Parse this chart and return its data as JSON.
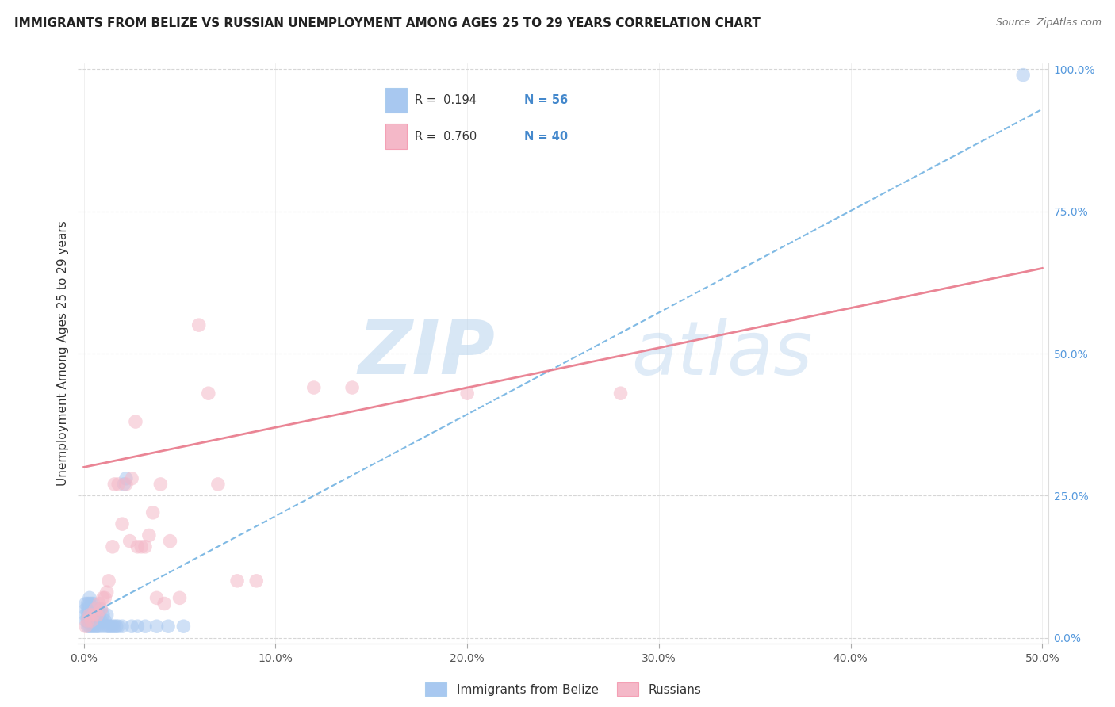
{
  "title": "IMMIGRANTS FROM BELIZE VS RUSSIAN UNEMPLOYMENT AMONG AGES 25 TO 29 YEARS CORRELATION CHART",
  "source": "Source: ZipAtlas.com",
  "ylabel": "Unemployment Among Ages 25 to 29 years",
  "xlim": [
    -0.003,
    0.503
  ],
  "ylim": [
    -0.01,
    1.01
  ],
  "xtick_vals": [
    0.0,
    0.1,
    0.2,
    0.3,
    0.4,
    0.5
  ],
  "xtick_labels": [
    "0.0%",
    "10.0%",
    "20.0%",
    "30.0%",
    "40.0%",
    "50.0%"
  ],
  "ytick_vals": [
    0.0,
    0.25,
    0.5,
    0.75,
    1.0
  ],
  "ytick_labels": [
    "0.0%",
    "25.0%",
    "50.0%",
    "75.0%",
    "100.0%"
  ],
  "legend_r1": "R =  0.194",
  "legend_n1": "N = 56",
  "legend_r2": "R =  0.760",
  "legend_n2": "N = 40",
  "blue_scatter_color": "#A8C8F0",
  "pink_scatter_color": "#F4B8C8",
  "blue_line_color": "#6AAEE0",
  "pink_line_color": "#E8788A",
  "watermark_zip": "ZIP",
  "watermark_atlas": "atlas",
  "blue_line_x0": 0.0,
  "blue_line_y0": 0.035,
  "blue_line_x1": 0.5,
  "blue_line_y1": 0.93,
  "pink_line_x0": 0.0,
  "pink_line_y0": 0.3,
  "pink_line_x1": 0.5,
  "pink_line_y1": 0.65,
  "blue_x": [
    0.001,
    0.001,
    0.001,
    0.001,
    0.002,
    0.002,
    0.002,
    0.002,
    0.002,
    0.003,
    0.003,
    0.003,
    0.003,
    0.003,
    0.003,
    0.004,
    0.004,
    0.004,
    0.004,
    0.004,
    0.005,
    0.005,
    0.005,
    0.005,
    0.005,
    0.006,
    0.006,
    0.006,
    0.007,
    0.007,
    0.007,
    0.008,
    0.008,
    0.009,
    0.009,
    0.01,
    0.01,
    0.011,
    0.012,
    0.012,
    0.013,
    0.014,
    0.015,
    0.016,
    0.017,
    0.018,
    0.02,
    0.021,
    0.022,
    0.025,
    0.028,
    0.032,
    0.038,
    0.044,
    0.052,
    0.49
  ],
  "blue_y": [
    0.03,
    0.04,
    0.05,
    0.06,
    0.02,
    0.03,
    0.04,
    0.05,
    0.06,
    0.02,
    0.03,
    0.04,
    0.05,
    0.06,
    0.07,
    0.02,
    0.03,
    0.04,
    0.05,
    0.06,
    0.02,
    0.03,
    0.04,
    0.05,
    0.06,
    0.02,
    0.03,
    0.04,
    0.02,
    0.03,
    0.05,
    0.02,
    0.04,
    0.03,
    0.05,
    0.02,
    0.04,
    0.03,
    0.02,
    0.04,
    0.02,
    0.02,
    0.02,
    0.02,
    0.02,
    0.02,
    0.02,
    0.27,
    0.28,
    0.02,
    0.02,
    0.02,
    0.02,
    0.02,
    0.02,
    0.99
  ],
  "pink_x": [
    0.001,
    0.002,
    0.003,
    0.004,
    0.005,
    0.006,
    0.007,
    0.008,
    0.009,
    0.01,
    0.011,
    0.012,
    0.013,
    0.015,
    0.016,
    0.018,
    0.02,
    0.022,
    0.024,
    0.025,
    0.027,
    0.028,
    0.03,
    0.032,
    0.034,
    0.036,
    0.038,
    0.04,
    0.042,
    0.045,
    0.05,
    0.06,
    0.065,
    0.07,
    0.08,
    0.09,
    0.12,
    0.14,
    0.2,
    0.28
  ],
  "pink_y": [
    0.02,
    0.03,
    0.04,
    0.03,
    0.04,
    0.05,
    0.04,
    0.06,
    0.05,
    0.07,
    0.07,
    0.08,
    0.1,
    0.16,
    0.27,
    0.27,
    0.2,
    0.27,
    0.17,
    0.28,
    0.38,
    0.16,
    0.16,
    0.16,
    0.18,
    0.22,
    0.07,
    0.27,
    0.06,
    0.17,
    0.07,
    0.55,
    0.43,
    0.27,
    0.1,
    0.1,
    0.44,
    0.44,
    0.43,
    0.43
  ]
}
